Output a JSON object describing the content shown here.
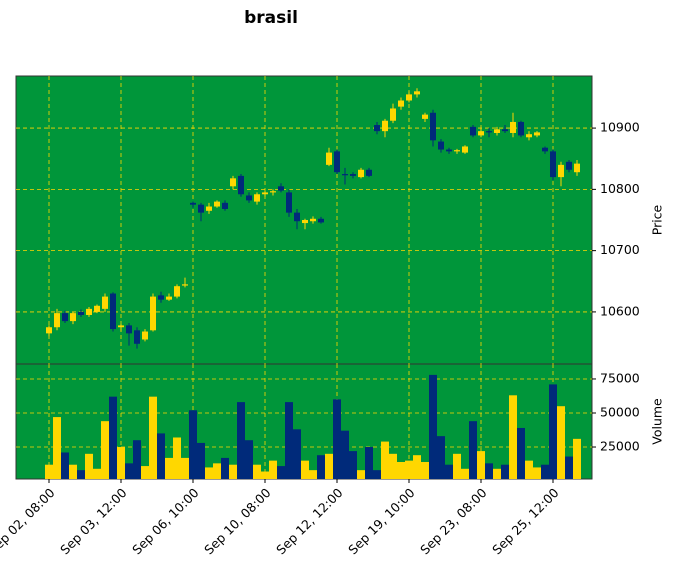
{
  "chart_data": {
    "type": "candlestick",
    "title": "brasil",
    "categories": [
      "Sep 02, 08:00",
      null,
      null,
      null,
      null,
      null,
      null,
      null,
      null,
      "Sep 03, 12:00",
      null,
      null,
      null,
      null,
      null,
      null,
      null,
      null,
      "Sep 06, 10:00",
      null,
      null,
      null,
      null,
      null,
      null,
      null,
      null,
      "Sep 10, 08:00",
      null,
      null,
      null,
      null,
      null,
      null,
      null,
      null,
      "Sep 12, 12:00",
      null,
      null,
      null,
      null,
      null,
      null,
      null,
      null,
      "Sep 19, 10:00",
      null,
      null,
      null,
      null,
      null,
      null,
      null,
      null,
      "Sep 23, 08:00",
      null,
      null,
      null,
      null,
      null,
      null,
      null,
      null,
      "Sep 25, 12:00",
      null,
      null,
      null
    ],
    "open": [
      10565,
      10575,
      10598,
      10585,
      10600,
      10595,
      10600,
      10605,
      10630,
      10575,
      10578,
      10570,
      10555,
      10570,
      10627,
      10620,
      10625,
      10643,
      10778,
      10775,
      10765,
      10772,
      10778,
      10805,
      10822,
      10790,
      10780,
      10792,
      10795,
      10805,
      10795,
      10762,
      10745,
      10748,
      10752,
      10840,
      10862,
      10825,
      10825,
      10820,
      10832,
      10905,
      10895,
      10912,
      10935,
      10945,
      10955,
      10915,
      10925,
      10878,
      10865,
      10862,
      10860,
      10902,
      10888,
      10895,
      10892,
      10898,
      10892,
      10910,
      10885,
      10888,
      10868,
      10862,
      10820,
      10845,
      10828
    ],
    "high": [
      10578,
      10605,
      10602,
      10600,
      10604,
      10608,
      10612,
      10630,
      10632,
      10580,
      10582,
      10575,
      10572,
      10630,
      10633,
      10630,
      10645,
      10656,
      10780,
      10778,
      10778,
      10782,
      10782,
      10822,
      10825,
      10795,
      10795,
      10797,
      10800,
      10810,
      10800,
      10768,
      10752,
      10756,
      10755,
      10868,
      10865,
      10835,
      10828,
      10835,
      10835,
      10910,
      10915,
      10940,
      10950,
      10960,
      10965,
      10925,
      10930,
      10882,
      10868,
      10866,
      10872,
      10905,
      10900,
      10900,
      10902,
      10905,
      10925,
      10912,
      10895,
      10895,
      10870,
      10865,
      10845,
      10848,
      10848
    ],
    "low": [
      10560,
      10570,
      10582,
      10580,
      10592,
      10592,
      10598,
      10600,
      10568,
      10568,
      10545,
      10540,
      10552,
      10568,
      10615,
      10618,
      10622,
      10640,
      10770,
      10748,
      10760,
      10770,
      10765,
      10800,
      10788,
      10778,
      10775,
      10788,
      10790,
      10795,
      10755,
      10735,
      10735,
      10744,
      10744,
      10838,
      10825,
      10808,
      10818,
      10818,
      10820,
      10890,
      10885,
      10908,
      10930,
      10942,
      10950,
      10910,
      10870,
      10860,
      10858,
      10858,
      10858,
      10885,
      10885,
      10885,
      10888,
      10892,
      10885,
      10885,
      10880,
      10885,
      10858,
      10815,
      10805,
      10828,
      10822
    ],
    "close": [
      10575,
      10598,
      10585,
      10598,
      10595,
      10605,
      10610,
      10625,
      10572,
      10578,
      10565,
      10548,
      10568,
      10625,
      10620,
      10625,
      10642,
      10645,
      10775,
      10762,
      10772,
      10780,
      10768,
      10818,
      10792,
      10782,
      10792,
      10795,
      10797,
      10798,
      10762,
      10748,
      10750,
      10752,
      10746,
      10860,
      10828,
      10823,
      10822,
      10832,
      10822,
      10895,
      10912,
      10932,
      10945,
      10955,
      10960,
      10922,
      10880,
      10865,
      10862,
      10864,
      10870,
      10888,
      10895,
      10893,
      10898,
      10895,
      10910,
      10888,
      10890,
      10893,
      10862,
      10820,
      10840,
      10832,
      10842
    ],
    "volume": [
      12000,
      47000,
      21000,
      12000,
      8000,
      20000,
      9000,
      44000,
      62000,
      25000,
      13000,
      30000,
      11000,
      62000,
      35000,
      17000,
      32000,
      17000,
      52000,
      28000,
      10000,
      13000,
      17000,
      12000,
      58000,
      30000,
      12000,
      7000,
      15000,
      11000,
      58000,
      38000,
      15000,
      8000,
      19000,
      20000,
      60000,
      37000,
      22000,
      8000,
      25000,
      8000,
      29000,
      20000,
      14000,
      15000,
      19000,
      14000,
      78000,
      33000,
      12000,
      20000,
      9000,
      44000,
      22000,
      13000,
      9000,
      12000,
      63000,
      39000,
      15000,
      10000,
      12000,
      71000,
      55000,
      18000,
      31000
    ],
    "ylabel": "Price",
    "ylim": [
      10515,
      10985
    ],
    "yticks": [
      10600,
      10700,
      10800,
      10900
    ],
    "volume_ylabel": "Volume",
    "volume_ylim": [
      1500,
      86000
    ],
    "volume_yticks": [
      25000,
      50000,
      75000
    ],
    "up_color": "#ffd700",
    "down_color": "#002a7a",
    "background": "#00963a",
    "grid_color": "#ffd700",
    "grid": true
  }
}
